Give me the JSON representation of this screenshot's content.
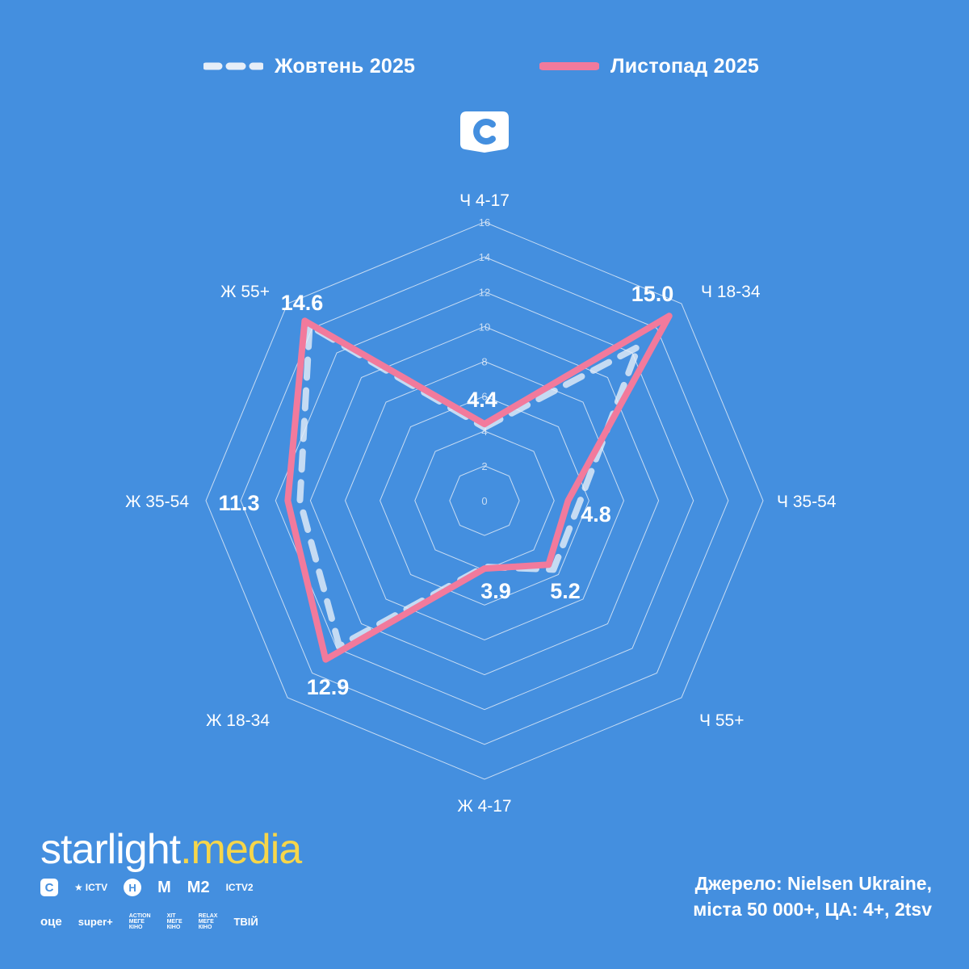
{
  "legend": {
    "october": {
      "label": "Жовтень 2025",
      "color": "#e6eef8"
    },
    "november": {
      "label": "Листопад 2025",
      "color": "#f27a9c"
    }
  },
  "channel_logo": {
    "letter": "C",
    "icon": "stb-logo-icon"
  },
  "chart_data": {
    "type": "radar",
    "axes": [
      "Ч 4-17",
      "Ч 18-34",
      "Ч 35-54",
      "Ч 55+",
      "Ж 4-17",
      "Ж 18-34",
      "Ж 35-54",
      "Ж 55+"
    ],
    "rlim": [
      0,
      16
    ],
    "ticks": [
      "0",
      "2",
      "4",
      "6",
      "8",
      "10",
      "12",
      "14",
      "16"
    ],
    "series": [
      {
        "name": "Жовтень 2025",
        "style": "dashed",
        "color": "#e6eef8",
        "values": [
          4.2,
          12.5,
          5.5,
          5.6,
          3.8,
          11.8,
          10.6,
          14.2
        ]
      },
      {
        "name": "Листопад 2025",
        "style": "solid",
        "color": "#f27a9c",
        "values": [
          4.4,
          15.0,
          4.8,
          5.2,
          3.9,
          12.9,
          11.3,
          14.6
        ]
      }
    ],
    "data_labels": [
      "4.4",
      "15.0",
      "4.8",
      "5.2",
      "3.9",
      "12.9",
      "11.3",
      "14.6"
    ]
  },
  "brand": {
    "part1": "starlight",
    "part2": "media"
  },
  "channels": {
    "row1": [
      "C",
      "ICTV",
      "H",
      "M",
      "M2",
      "ICTV2"
    ],
    "row2": [
      "оце",
      "super+",
      "ACTION",
      "МЕГЕ",
      "КІНО",
      "XIT",
      "МЕГЕ",
      "КІНО",
      "RELAX",
      "МЕГЕ",
      "КІНО",
      "ТВІЙ"
    ]
  },
  "source": {
    "line1": "Джерело: Nielsen Ukraine,",
    "line2": "міста 50 000+, ЦА: 4+, 2tsv"
  }
}
